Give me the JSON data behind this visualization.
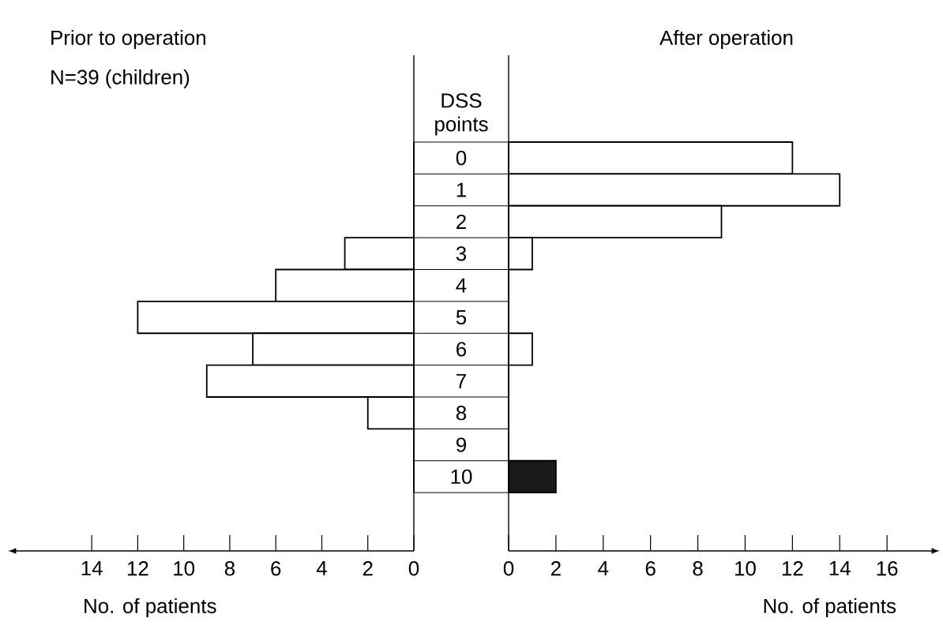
{
  "chart_data": [
    {
      "type": "bar",
      "orientation": "horizontal",
      "title": "Prior to operation",
      "subtitle": "N=39 (children)",
      "ylabel": "DSS points",
      "xlabel": "No. of patients",
      "categories": [
        "0",
        "1",
        "2",
        "3",
        "4",
        "5",
        "6",
        "7",
        "8",
        "9",
        "10"
      ],
      "values": [
        0,
        0,
        0,
        3,
        6,
        12,
        7,
        9,
        2,
        0,
        0
      ],
      "color": "#ffffff",
      "xlim": [
        17.3,
        0
      ],
      "xticks": [
        0,
        2,
        4,
        6,
        8,
        10,
        12,
        14
      ]
    },
    {
      "type": "bar",
      "orientation": "horizontal",
      "title": "After operation",
      "xlabel": "No. of patients",
      "categories": [
        "0",
        "1",
        "2",
        "3",
        "4",
        "5",
        "6",
        "7",
        "8",
        "9",
        "10"
      ],
      "values": [
        12,
        14,
        9,
        1,
        0,
        0,
        1,
        0,
        0,
        0,
        2
      ],
      "colors": [
        "#ffffff",
        "#ffffff",
        "#ffffff",
        "#ffffff",
        "#ffffff",
        "#ffffff",
        "#ffffff",
        "#ffffff",
        "#ffffff",
        "#ffffff",
        "#1a1a1a"
      ],
      "xlim": [
        0,
        17.9
      ],
      "xticks": [
        0,
        2,
        4,
        6,
        8,
        10,
        12,
        14,
        16
      ],
      "tick_labels": "x"
    }
  ]
}
